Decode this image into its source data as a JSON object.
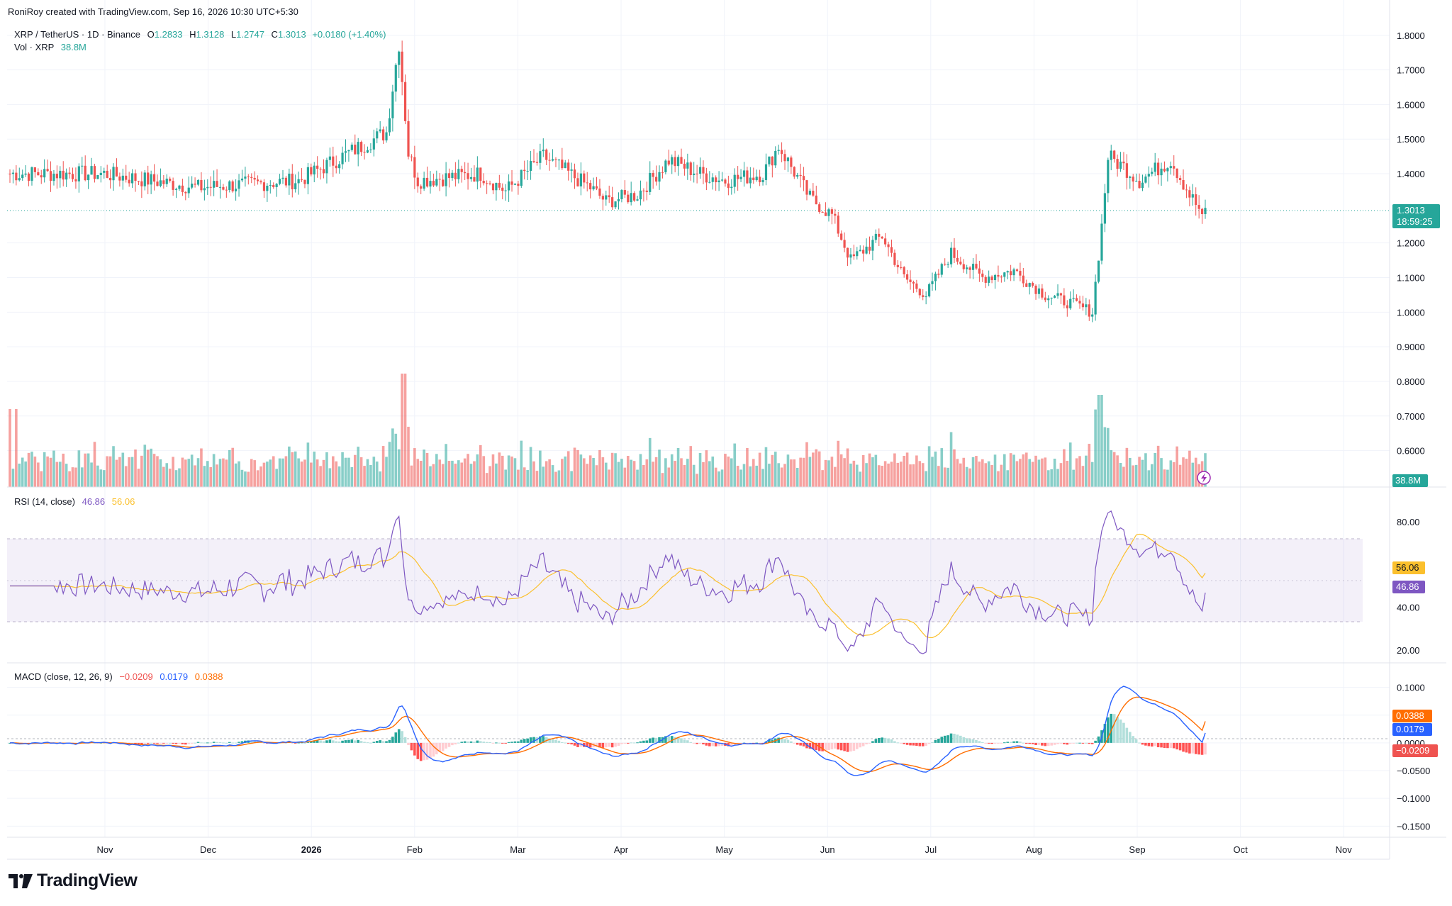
{
  "header": {
    "created_by": "RoniRoy created with TradingView.com, Sep 16, 2026 10:30 UTC+5:30"
  },
  "legend": {
    "symbol": "XRP / TetherUS · 1D · Binance",
    "open_label": "O",
    "open": "1.2833",
    "high_label": "H",
    "high": "1.3128",
    "low_label": "L",
    "low": "1.2747",
    "close_label": "C",
    "close": "1.3013",
    "change": "+0.0180 (+1.40%)",
    "vol_label": "Vol · XRP",
    "vol_value": "38.8M"
  },
  "rsi": {
    "label": "RSI (14, close)",
    "value": "46.86",
    "ma_value": "56.06",
    "ticks": [
      "80.00",
      "60.00",
      "40.00",
      "20.00"
    ]
  },
  "macd": {
    "label": "MACD (close, 12, 26, 9)",
    "hist": "−0.0209",
    "macd": "0.0179",
    "signal": "0.0388",
    "ticks": [
      "0.1000",
      "0.0500",
      "0.0000",
      "−0.0500",
      "−0.1000",
      "−0.1500"
    ]
  },
  "price_axis": {
    "ticks": [
      "1.8000",
      "1.7000",
      "1.6000",
      "1.5000",
      "1.4000",
      "1.2000",
      "1.1000",
      "1.0000",
      "0.9000",
      "0.8000",
      "0.7000",
      "0.6000"
    ],
    "last_price": "1.3013",
    "countdown": "18:59:25",
    "vol_badge": "38.8M"
  },
  "time_axis": {
    "labels": [
      "Nov",
      "Dec",
      "2026",
      "Feb",
      "Mar",
      "Apr",
      "May",
      "Jun",
      "Jul",
      "Aug",
      "Sep",
      "Oct",
      "Nov"
    ]
  },
  "brand": {
    "name": "TradingView"
  },
  "colors": {
    "up": "#26a69a",
    "down": "#ef5350",
    "rsi": "#7e57c2",
    "rsi_ma": "#fbc02d",
    "macd": "#2962ff",
    "signal": "#ff6d00"
  },
  "chart_data": {
    "type": "candlestick",
    "title": "XRP / TetherUS · 1D · Binance",
    "price_range": [
      0.55,
      1.82
    ],
    "rsi_range": [
      14,
      92
    ],
    "macd_range": [
      -0.17,
      0.125
    ],
    "monthly_closes": [
      {
        "month": "Oct 2025",
        "close": 1.42
      },
      {
        "month": "Nov 2025",
        "close": 1.38
      },
      {
        "month": "Dec 2025",
        "close": 1.37
      },
      {
        "month": "Jan 2026",
        "close": 1.5
      },
      {
        "month": "Feb 2026",
        "close": 1.35
      },
      {
        "month": "Mar 2026",
        "close": 1.37
      },
      {
        "month": "Apr 2026",
        "close": 1.38
      },
      {
        "month": "May 2026",
        "close": 1.37
      },
      {
        "month": "Jun 2026",
        "close": 1.09
      },
      {
        "month": "Jul 2026",
        "close": 1.08
      },
      {
        "month": "Aug 2026",
        "close": 1.4
      },
      {
        "month": "Sep 2026",
        "close": 1.3013
      }
    ],
    "recent_candles": [
      {
        "date": "Jan 28 2026",
        "o": 1.8,
        "h": 1.82,
        "l": 1.74,
        "c": 1.76
      },
      {
        "date": "Feb 3 2026",
        "o": 1.5,
        "h": 1.52,
        "l": 1.12,
        "c": 1.22
      },
      {
        "date": "Jun 5 2026",
        "o": 1.26,
        "h": 1.28,
        "l": 1.13,
        "c": 1.16
      },
      {
        "date": "Aug 17 2026",
        "o": 1.0,
        "h": 1.01,
        "l": 0.99,
        "c": 1.0
      },
      {
        "date": "Aug 19 2026",
        "o": 1.1,
        "h": 1.26,
        "l": 1.09,
        "c": 1.26
      },
      {
        "date": "Aug 21 2026",
        "o": 1.33,
        "h": 1.7,
        "l": 1.32,
        "c": 1.45
      },
      {
        "date": "Sep 15 2026",
        "o": 1.42,
        "h": 1.49,
        "l": 1.29,
        "c": 1.2833
      },
      {
        "date": "Sep 16 2026",
        "o": 1.2833,
        "h": 1.3128,
        "l": 1.2747,
        "c": 1.3013
      }
    ],
    "volume_last": "38.8M",
    "rsi_last": 46.86,
    "rsi_ma_last": 56.06,
    "macd_last": 0.0179,
    "signal_last": 0.0388,
    "hist_last": -0.0209
  }
}
